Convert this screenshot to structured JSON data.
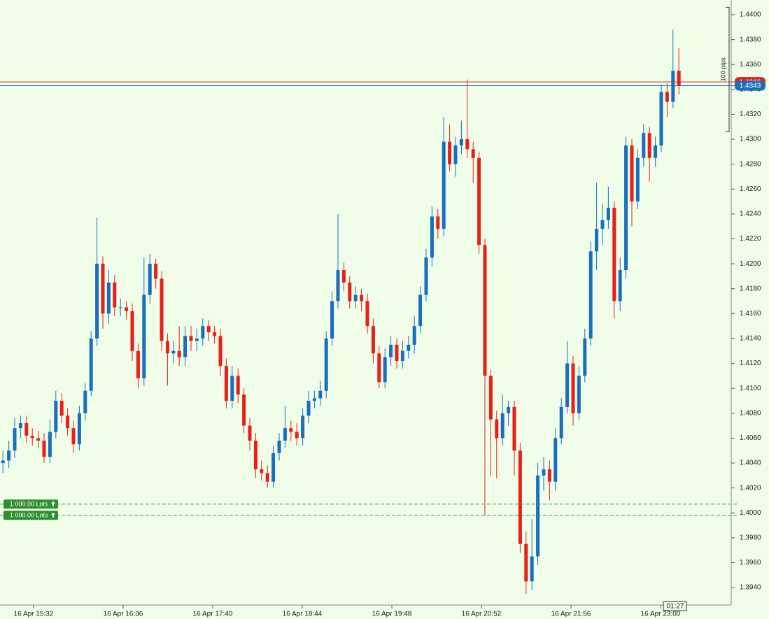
{
  "chart_data": {
    "type": "candlestick",
    "series": [
      {
        "open": [
          1.404,
          1.4042,
          1.405,
          1.4068,
          1.4072,
          1.4062,
          1.406,
          1.4058,
          1.4045,
          1.4065,
          1.409,
          1.4078,
          1.4068,
          1.4055,
          1.408,
          1.4098,
          1.414,
          1.42,
          1.416,
          1.4185,
          1.4165,
          1.4165,
          1.4162,
          1.413,
          1.4108,
          1.4175,
          1.42,
          1.4188,
          1.4138,
          1.4128,
          1.413,
          1.4125,
          1.4142,
          1.4138,
          1.414,
          1.415,
          1.4145,
          1.4142,
          1.4118,
          1.409,
          1.411,
          1.4095,
          1.407,
          1.4058,
          1.4035,
          1.4032,
          1.4025,
          1.4048,
          1.4058,
          1.4068,
          1.4065,
          1.406,
          1.4078,
          1.409,
          1.4092,
          1.4098,
          1.414,
          1.417,
          1.4195,
          1.4185,
          1.417,
          1.4175,
          1.417,
          1.415,
          1.4128,
          1.4105,
          1.4125,
          1.4135,
          1.4122,
          1.413,
          1.4135,
          1.415,
          1.4175,
          1.4205,
          1.4238,
          1.4228,
          1.4298,
          1.428,
          1.4295,
          1.43,
          1.4292,
          1.4285,
          1.4215,
          1.411,
          1.4075,
          1.406,
          1.408,
          1.4085,
          1.405,
          1.3975,
          1.3945,
          1.3965,
          1.403,
          1.4035,
          1.4025,
          1.406,
          1.4085,
          1.412,
          1.408,
          1.411,
          1.414,
          1.421,
          1.4228,
          1.4235,
          1.4245,
          1.417,
          1.4195,
          1.4295,
          1.425,
          1.4285,
          1.4305,
          1.4285,
          1.4295,
          1.4338,
          1.433,
          1.4355
        ],
        "high": [
          1.405,
          1.4058,
          1.4076,
          1.4078,
          1.4078,
          1.4068,
          1.4066,
          1.4064,
          1.4075,
          1.4098,
          1.4096,
          1.4084,
          1.4074,
          1.4086,
          1.4104,
          1.4146,
          1.4237,
          1.4206,
          1.4195,
          1.4191,
          1.4172,
          1.417,
          1.4168,
          1.4136,
          1.4205,
          1.4208,
          1.4204,
          1.4194,
          1.4144,
          1.4138,
          1.415,
          1.415,
          1.415,
          1.4148,
          1.4156,
          1.4155,
          1.415,
          1.4148,
          1.4124,
          1.4118,
          1.4116,
          1.41,
          1.4076,
          1.4064,
          1.4042,
          1.4038,
          1.4054,
          1.4064,
          1.4086,
          1.4074,
          1.4072,
          1.4084,
          1.4098,
          1.4098,
          1.4106,
          1.4146,
          1.4178,
          1.424,
          1.4201,
          1.419,
          1.4182,
          1.418,
          1.4176,
          1.4156,
          1.4134,
          1.4132,
          1.4142,
          1.414,
          1.4138,
          1.4142,
          1.4158,
          1.4182,
          1.4212,
          1.4246,
          1.4244,
          1.4318,
          1.4312,
          1.4302,
          1.4315,
          1.4348,
          1.4298,
          1.429,
          1.422,
          1.4115,
          1.4082,
          1.4095,
          1.409,
          1.409,
          1.4056,
          1.3985,
          1.3995,
          1.404,
          1.4045,
          1.4042,
          1.4068,
          1.4092,
          1.4138,
          1.4126,
          1.4118,
          1.4148,
          1.4218,
          1.4265,
          1.4248,
          1.4262,
          1.425,
          1.4205,
          1.4302,
          1.43,
          1.4292,
          1.4312,
          1.431,
          1.4302,
          1.4344,
          1.4345,
          1.4388,
          1.4373
        ],
        "low": [
          1.4032,
          1.4036,
          1.4044,
          1.406,
          1.4056,
          1.4054,
          1.4052,
          1.404,
          1.404,
          1.406,
          1.4072,
          1.4062,
          1.4048,
          1.405,
          1.4074,
          1.4094,
          1.4134,
          1.4148,
          1.4152,
          1.4158,
          1.4158,
          1.4155,
          1.4122,
          1.41,
          1.4102,
          1.4168,
          1.418,
          1.413,
          1.4102,
          1.412,
          1.4118,
          1.4118,
          1.413,
          1.413,
          1.4134,
          1.4138,
          1.4136,
          1.411,
          1.4084,
          1.4084,
          1.4088,
          1.4064,
          1.405,
          1.4028,
          1.4026,
          1.402,
          1.402,
          1.4042,
          1.4052,
          1.4058,
          1.4054,
          1.4054,
          1.4072,
          1.4084,
          1.4086,
          1.4092,
          1.4134,
          1.4164,
          1.4178,
          1.4164,
          1.4164,
          1.4162,
          1.4144,
          1.412,
          1.41,
          1.41,
          1.4118,
          1.4116,
          1.4116,
          1.4124,
          1.4128,
          1.4144,
          1.417,
          1.4198,
          1.422,
          1.4222,
          1.4274,
          1.427,
          1.4288,
          1.4285,
          1.4265,
          1.4208,
          1.3998,
          1.403,
          1.4028,
          1.4054,
          1.407,
          1.403,
          1.3968,
          1.3935,
          1.3938,
          1.3958,
          1.4018,
          1.401,
          1.4018,
          1.4055,
          1.408,
          1.407,
          1.4075,
          1.4105,
          1.4134,
          1.4195,
          1.4215,
          1.4228,
          1.4156,
          1.4162,
          1.4188,
          1.423,
          1.4244,
          1.4278,
          1.4266,
          1.4278,
          1.429,
          1.4318,
          1.4325,
          1.4336
        ],
        "close": [
          1.4042,
          1.405,
          1.4068,
          1.4072,
          1.4062,
          1.406,
          1.4058,
          1.4045,
          1.4065,
          1.409,
          1.4078,
          1.4068,
          1.4055,
          1.408,
          1.4098,
          1.414,
          1.42,
          1.416,
          1.4185,
          1.4165,
          1.4165,
          1.4162,
          1.413,
          1.4108,
          1.4175,
          1.42,
          1.4188,
          1.4138,
          1.4128,
          1.413,
          1.4125,
          1.4142,
          1.4138,
          1.414,
          1.415,
          1.4145,
          1.4142,
          1.4118,
          1.409,
          1.411,
          1.4095,
          1.407,
          1.4058,
          1.4035,
          1.4032,
          1.4025,
          1.4048,
          1.4058,
          1.4068,
          1.4065,
          1.406,
          1.4078,
          1.409,
          1.4092,
          1.4098,
          1.414,
          1.417,
          1.4195,
          1.4185,
          1.417,
          1.4175,
          1.417,
          1.415,
          1.4128,
          1.4105,
          1.4125,
          1.4135,
          1.4122,
          1.413,
          1.4135,
          1.415,
          1.4175,
          1.4205,
          1.4238,
          1.4228,
          1.4298,
          1.428,
          1.4295,
          1.43,
          1.4292,
          1.4285,
          1.4215,
          1.411,
          1.4075,
          1.406,
          1.408,
          1.4085,
          1.405,
          1.3975,
          1.3945,
          1.3965,
          1.403,
          1.4035,
          1.4025,
          1.406,
          1.4085,
          1.412,
          1.408,
          1.411,
          1.414,
          1.421,
          1.4228,
          1.4235,
          1.4245,
          1.417,
          1.4195,
          1.4295,
          1.425,
          1.4285,
          1.4305,
          1.4285,
          1.4295,
          1.4338,
          1.433,
          1.4355,
          1.4343
        ]
      }
    ],
    "up_color": "#1a6fbd",
    "down_color": "#e8201a",
    "ylim": [
      1.3926,
      1.44118
    ],
    "yticks": [
      {
        "value": 1.44,
        "label": "1.4400"
      },
      {
        "value": 1.438,
        "label": "1.4380"
      },
      {
        "value": 1.436,
        "label": "1.4360"
      },
      {
        "value": 1.434,
        "label": "1.4340"
      },
      {
        "value": 1.432,
        "label": "1.4320"
      },
      {
        "value": 1.43,
        "label": "1.4300"
      },
      {
        "value": 1.428,
        "label": "1.4280"
      },
      {
        "value": 1.426,
        "label": "1.4260"
      },
      {
        "value": 1.424,
        "label": "1.4240"
      },
      {
        "value": 1.422,
        "label": "1.4220"
      },
      {
        "value": 1.42,
        "label": "1.4200"
      },
      {
        "value": 1.418,
        "label": "1.4180"
      },
      {
        "value": 1.416,
        "label": "1.4160"
      },
      {
        "value": 1.414,
        "label": "1.4140"
      },
      {
        "value": 1.412,
        "label": "1.4120"
      },
      {
        "value": 1.41,
        "label": "1.4100"
      },
      {
        "value": 1.408,
        "label": "1.4080"
      },
      {
        "value": 1.406,
        "label": "1.4060"
      },
      {
        "value": 1.404,
        "label": "1.4040"
      },
      {
        "value": 1.402,
        "label": "1.4020"
      },
      {
        "value": 1.4,
        "label": "1.4000"
      },
      {
        "value": 1.398,
        "label": "1.3980"
      },
      {
        "value": 1.396,
        "label": "1.3960"
      },
      {
        "value": 1.394,
        "label": "1.3940"
      }
    ],
    "xlim": [
      0,
      123.81
    ],
    "xticks": [
      {
        "value": 5.71,
        "label": "16 Apr 15:32"
      },
      {
        "value": 20.95,
        "label": "16 Apr 16:36"
      },
      {
        "value": 36.19,
        "label": "16 Apr 17:40"
      },
      {
        "value": 51.43,
        "label": "16 Apr 18:44"
      },
      {
        "value": 66.67,
        "label": "16 Apr 19:48"
      },
      {
        "value": 81.9,
        "label": "16 Apr 20:52"
      },
      {
        "value": 97.14,
        "label": "16 Apr 21:56"
      },
      {
        "value": 112.38,
        "label": "16 Apr 23:00"
      }
    ],
    "price_lines": [
      {
        "value": 1.4346,
        "color": "#e8201a",
        "label": "1.4346"
      },
      {
        "value": 1.4343,
        "color": "#1a6fbd",
        "label": "1.4343"
      }
    ],
    "orders": [
      {
        "value": 1.4007,
        "label": "1 000.00 Lots"
      },
      {
        "value": 1.3998,
        "label": "1 000.00 Lots"
      }
    ],
    "range_marker": {
      "top": 1.4406,
      "bottom": 1.4306,
      "label": "100 pips"
    },
    "timer": "01:27"
  }
}
